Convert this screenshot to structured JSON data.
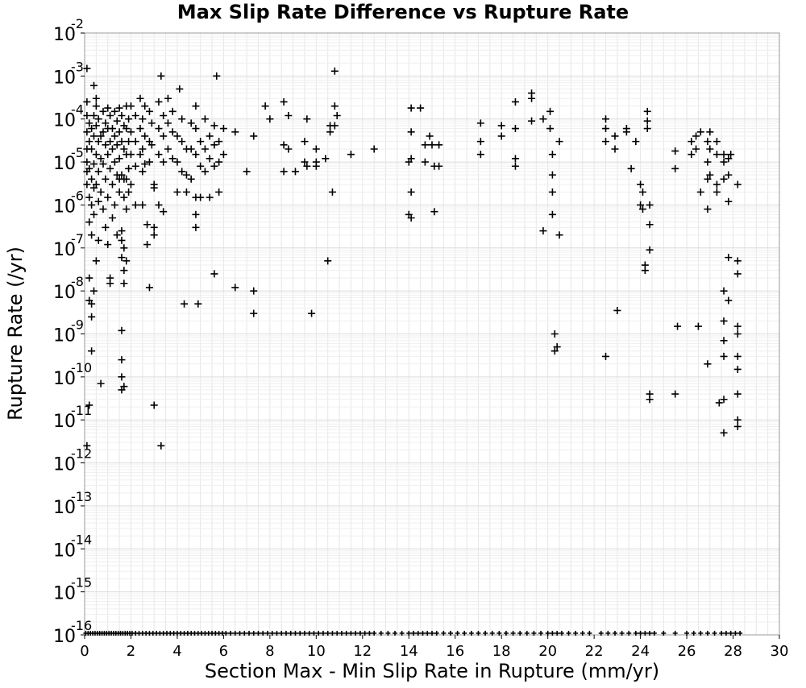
{
  "chart_data": {
    "type": "scatter",
    "title": "Max Slip Rate Difference vs Rupture Rate",
    "xlabel": "Section Max - Min Slip Rate in Rupture (mm/yr)",
    "ylabel": "Rupture Rate (/yr)",
    "xlim": [
      0,
      30
    ],
    "ylim": [
      1e-16,
      0.01
    ],
    "y_scale": "log",
    "grid": true,
    "marker": "plus",
    "marker_color": "#000000",
    "grid_color": "#e6e6e6",
    "x_tick_labels": [
      "0",
      "2",
      "4",
      "6",
      "8",
      "10",
      "12",
      "14",
      "16",
      "18",
      "20",
      "22",
      "24",
      "26",
      "28",
      "30"
    ],
    "y_tick_labels": [
      {
        "base": "10",
        "exp": "-16"
      },
      {
        "base": "10",
        "exp": "-15"
      },
      {
        "base": "10",
        "exp": "-14"
      },
      {
        "base": "10",
        "exp": "-13"
      },
      {
        "base": "10",
        "exp": "-12"
      },
      {
        "base": "10",
        "exp": "-11"
      },
      {
        "base": "10",
        "exp": "-10"
      },
      {
        "base": "10",
        "exp": "-9"
      },
      {
        "base": "10",
        "exp": "-8"
      },
      {
        "base": "10",
        "exp": "-7"
      },
      {
        "base": "10",
        "exp": "-6"
      },
      {
        "base": "10",
        "exp": "-5"
      },
      {
        "base": "10",
        "exp": "-4"
      },
      {
        "base": "10",
        "exp": "-3"
      },
      {
        "base": "10",
        "exp": "-2"
      }
    ],
    "points": [
      [
        0.1,
        2e-05
      ],
      [
        0.1,
        5e-05
      ],
      [
        0.1,
        1e-05
      ],
      [
        0.1,
        3e-06
      ],
      [
        0.1,
        6e-06
      ],
      [
        0.1,
        0.00012
      ],
      [
        0.1,
        0.00025
      ],
      [
        0.1,
        0.0015
      ],
      [
        0.2,
        8e-05
      ],
      [
        0.2,
        3e-05
      ],
      [
        0.2,
        7e-06
      ],
      [
        0.2,
        1.5e-06
      ],
      [
        0.2,
        4e-07
      ],
      [
        0.2,
        2e-08
      ],
      [
        0.2,
        6e-09
      ],
      [
        0.2,
        2.2e-11
      ],
      [
        0.1,
        2.5e-12
      ],
      [
        0.3,
        6e-05
      ],
      [
        0.3,
        2e-05
      ],
      [
        0.3,
        4e-06
      ],
      [
        0.3,
        1e-06
      ],
      [
        0.3,
        2e-07
      ],
      [
        0.3,
        5e-09
      ],
      [
        0.3,
        2.5e-09
      ],
      [
        0.3,
        4e-10
      ],
      [
        0.4,
        0.00012
      ],
      [
        0.4,
        4e-05
      ],
      [
        0.4,
        9e-06
      ],
      [
        0.4,
        2.5e-06
      ],
      [
        0.4,
        6e-07
      ],
      [
        0.4,
        1e-08
      ],
      [
        0.4,
        0.0006
      ],
      [
        0.5,
        0.0002
      ],
      [
        0.5,
        7e-05
      ],
      [
        0.5,
        1.5e-05
      ],
      [
        0.5,
        3e-06
      ],
      [
        0.5,
        5e-08
      ],
      [
        0.5,
        0.0003
      ],
      [
        0.6,
        0.0001
      ],
      [
        0.6,
        3e-05
      ],
      [
        0.6,
        6e-06
      ],
      [
        0.6,
        1.2e-06
      ],
      [
        0.6,
        1.5e-07
      ],
      [
        0.7,
        4e-05
      ],
      [
        0.7,
        1.2e-05
      ],
      [
        0.7,
        2e-06
      ],
      [
        0.7,
        7e-11
      ],
      [
        0.8,
        0.00015
      ],
      [
        0.8,
        5e-05
      ],
      [
        0.8,
        9e-06
      ],
      [
        0.8,
        8e-07
      ],
      [
        0.9,
        8e-05
      ],
      [
        0.9,
        2.5e-05
      ],
      [
        0.9,
        4e-06
      ],
      [
        0.9,
        3e-07
      ],
      [
        1.0,
        0.00018
      ],
      [
        1.0,
        6e-05
      ],
      [
        1.0,
        1.5e-05
      ],
      [
        1.0,
        1.5e-06
      ],
      [
        1.0,
        1.2e-07
      ],
      [
        1.1,
        0.00012
      ],
      [
        1.1,
        3e-05
      ],
      [
        1.1,
        7e-06
      ],
      [
        1.1,
        2e-08
      ],
      [
        1.1,
        1.5e-08
      ],
      [
        1.2,
        6e-05
      ],
      [
        1.2,
        2e-05
      ],
      [
        1.2,
        3e-06
      ],
      [
        1.2,
        5e-07
      ],
      [
        1.3,
        0.00015
      ],
      [
        1.3,
        4e-05
      ],
      [
        1.3,
        1e-05
      ],
      [
        1.3,
        1e-06
      ],
      [
        1.4,
        9e-05
      ],
      [
        1.4,
        2.5e-05
      ],
      [
        1.4,
        5e-06
      ],
      [
        1.4,
        2e-07
      ],
      [
        1.5,
        0.00018
      ],
      [
        1.5,
        5e-05
      ],
      [
        1.5,
        1.2e-05
      ],
      [
        1.5,
        4e-06
      ],
      [
        1.5,
        2e-06
      ],
      [
        1.6,
        0.00012
      ],
      [
        1.6,
        3e-05
      ],
      [
        1.6,
        5e-06
      ],
      [
        1.6,
        2.5e-07
      ],
      [
        1.6,
        1.5e-07
      ],
      [
        1.6,
        6e-08
      ],
      [
        1.6,
        1.2e-09
      ],
      [
        1.6,
        2.5e-10
      ],
      [
        1.6,
        1e-10
      ],
      [
        1.6,
        5e-11
      ],
      [
        1.7,
        6e-11
      ],
      [
        1.7,
        7e-05
      ],
      [
        1.7,
        2e-05
      ],
      [
        1.7,
        4e-06
      ],
      [
        1.7,
        1.5e-06
      ],
      [
        1.7,
        1e-07
      ],
      [
        1.7,
        1.5e-08
      ],
      [
        1.7,
        3e-08
      ],
      [
        1.8,
        0.0002
      ],
      [
        1.8,
        6e-05
      ],
      [
        1.8,
        1.5e-05
      ],
      [
        1.8,
        4e-06
      ],
      [
        1.8,
        8e-07
      ],
      [
        1.8,
        5e-08
      ],
      [
        1.9,
        0.0001
      ],
      [
        1.9,
        3e-05
      ],
      [
        1.9,
        7e-06
      ],
      [
        1.9,
        2e-06
      ],
      [
        2.0,
        0.0002
      ],
      [
        2.0,
        5e-05
      ],
      [
        2.0,
        1.5e-05
      ],
      [
        2.0,
        3e-06
      ],
      [
        2.2,
        0.00012
      ],
      [
        2.2,
        3e-05
      ],
      [
        2.2,
        8e-06
      ],
      [
        2.2,
        1e-06
      ],
      [
        2.4,
        0.0003
      ],
      [
        2.4,
        6e-05
      ],
      [
        2.4,
        1.5e-05
      ],
      [
        2.5,
        0.0001
      ],
      [
        2.5,
        2e-05
      ],
      [
        2.5,
        6e-06
      ],
      [
        2.5,
        1e-06
      ],
      [
        2.6,
        0.0002
      ],
      [
        2.6,
        4e-05
      ],
      [
        2.6,
        9e-06
      ],
      [
        2.8,
        0.00015
      ],
      [
        2.8,
        3e-05
      ],
      [
        2.8,
        1e-05
      ],
      [
        2.7,
        3.5e-07
      ],
      [
        2.7,
        1.2e-07
      ],
      [
        2.8,
        1.2e-08
      ],
      [
        2.9,
        8e-05
      ],
      [
        2.9,
        2.5e-05
      ],
      [
        3.0,
        3e-06
      ],
      [
        3.0,
        2.5e-06
      ],
      [
        3.0,
        3e-07
      ],
      [
        3.0,
        2e-07
      ],
      [
        3.0,
        2.2e-11
      ],
      [
        3.2,
        0.00025
      ],
      [
        3.2,
        6e-05
      ],
      [
        3.2,
        1.5e-05
      ],
      [
        3.2,
        1e-06
      ],
      [
        3.3,
        2.5e-12
      ],
      [
        3.3,
        0.001
      ],
      [
        3.4,
        0.00012
      ],
      [
        3.4,
        4e-05
      ],
      [
        3.4,
        1e-05
      ],
      [
        3.4,
        7e-07
      ],
      [
        3.6,
        0.0003
      ],
      [
        3.6,
        8e-05
      ],
      [
        3.6,
        2e-05
      ],
      [
        3.8,
        0.00015
      ],
      [
        3.8,
        5e-05
      ],
      [
        3.8,
        1.2e-05
      ],
      [
        4.0,
        4e-05
      ],
      [
        4.0,
        1e-05
      ],
      [
        4.0,
        2e-06
      ],
      [
        4.1,
        0.0005
      ],
      [
        4.2,
        0.0001
      ],
      [
        4.2,
        3e-05
      ],
      [
        4.2,
        6e-06
      ],
      [
        4.4,
        2e-05
      ],
      [
        4.4,
        5e-06
      ],
      [
        4.4,
        2e-06
      ],
      [
        4.3,
        5e-09
      ],
      [
        4.6,
        8e-05
      ],
      [
        4.6,
        2e-05
      ],
      [
        4.6,
        4e-06
      ],
      [
        4.8,
        0.0002
      ],
      [
        4.8,
        6e-05
      ],
      [
        4.8,
        1.5e-05
      ],
      [
        4.8,
        1.5e-06
      ],
      [
        4.8,
        6e-07
      ],
      [
        4.8,
        3e-07
      ],
      [
        4.9,
        5e-09
      ],
      [
        5.0,
        3e-05
      ],
      [
        5.0,
        8e-06
      ],
      [
        5.0,
        1.5e-06
      ],
      [
        5.2,
        0.0001
      ],
      [
        5.2,
        2e-05
      ],
      [
        5.2,
        6e-06
      ],
      [
        5.4,
        4e-05
      ],
      [
        5.4,
        1.2e-05
      ],
      [
        5.4,
        1.5e-06
      ],
      [
        5.6,
        7e-05
      ],
      [
        5.6,
        2.5e-05
      ],
      [
        5.6,
        8e-06
      ],
      [
        5.7,
        0.001
      ],
      [
        5.6,
        2.5e-08
      ],
      [
        5.8,
        3e-05
      ],
      [
        5.8,
        1e-05
      ],
      [
        5.8,
        2e-06
      ],
      [
        6.0,
        6e-05
      ],
      [
        6.0,
        1.5e-05
      ],
      [
        6.5,
        5e-05
      ],
      [
        6.5,
        1.2e-08
      ],
      [
        7.0,
        6e-06
      ],
      [
        7.3,
        4e-05
      ],
      [
        7.3,
        3e-09
      ],
      [
        7.3,
        1e-08
      ],
      [
        7.8,
        0.0002
      ],
      [
        8.0,
        0.0001
      ],
      [
        8.6,
        0.00025
      ],
      [
        8.6,
        2.5e-05
      ],
      [
        8.6,
        6e-06
      ],
      [
        8.8,
        0.00012
      ],
      [
        8.8,
        2e-05
      ],
      [
        9.1,
        6e-06
      ],
      [
        9.5,
        3e-05
      ],
      [
        9.5,
        1e-05
      ],
      [
        9.6,
        0.0001
      ],
      [
        9.6,
        8e-06
      ],
      [
        9.8,
        3e-09
      ],
      [
        10.0,
        2e-05
      ],
      [
        10.0,
        1e-05
      ],
      [
        10.0,
        8e-06
      ],
      [
        10.4,
        1.2e-05
      ],
      [
        10.5,
        5e-08
      ],
      [
        10.6,
        7e-05
      ],
      [
        10.6,
        5e-05
      ],
      [
        10.7,
        2e-06
      ],
      [
        10.8,
        0.0013
      ],
      [
        10.8,
        0.0002
      ],
      [
        10.8,
        7e-05
      ],
      [
        10.9,
        0.00012
      ],
      [
        11.5,
        1.5e-05
      ],
      [
        12.5,
        2e-05
      ],
      [
        14.0,
        1e-05
      ],
      [
        14.0,
        6e-07
      ],
      [
        14.1,
        0.00018
      ],
      [
        14.1,
        5e-05
      ],
      [
        14.1,
        2e-06
      ],
      [
        14.1,
        5e-07
      ],
      [
        14.1,
        1.2e-05
      ],
      [
        14.5,
        0.00018
      ],
      [
        14.7,
        2.5e-05
      ],
      [
        14.7,
        1e-05
      ],
      [
        14.9,
        4e-05
      ],
      [
        15.0,
        2.5e-05
      ],
      [
        15.1,
        8e-06
      ],
      [
        15.1,
        7e-07
      ],
      [
        15.3,
        8e-06
      ],
      [
        15.3,
        2.5e-05
      ],
      [
        17.1,
        8e-05
      ],
      [
        17.1,
        3e-05
      ],
      [
        17.1,
        1.5e-05
      ],
      [
        18.0,
        4e-05
      ],
      [
        18.0,
        7e-05
      ],
      [
        18.6,
        0.00025
      ],
      [
        18.6,
        6e-05
      ],
      [
        18.6,
        1.2e-05
      ],
      [
        18.6,
        8e-06
      ],
      [
        19.3,
        0.0004
      ],
      [
        19.3,
        9e-05
      ],
      [
        19.3,
        0.0003
      ],
      [
        19.8,
        0.0001
      ],
      [
        19.8,
        2.5e-07
      ],
      [
        20.1,
        0.00015
      ],
      [
        20.1,
        6e-05
      ],
      [
        20.2,
        1.5e-05
      ],
      [
        20.2,
        5e-06
      ],
      [
        20.2,
        2e-06
      ],
      [
        20.2,
        6e-07
      ],
      [
        20.3,
        1e-09
      ],
      [
        20.3,
        4e-10
      ],
      [
        20.4,
        5e-10
      ],
      [
        20.5,
        3e-05
      ],
      [
        20.5,
        2e-07
      ],
      [
        22.5,
        0.0001
      ],
      [
        22.5,
        6e-05
      ],
      [
        22.5,
        3e-05
      ],
      [
        22.5,
        3e-10
      ],
      [
        22.9,
        4e-05
      ],
      [
        22.9,
        2e-05
      ],
      [
        23.0,
        3.5e-09
      ],
      [
        23.4,
        5e-05
      ],
      [
        23.4,
        6e-05
      ],
      [
        23.6,
        7e-06
      ],
      [
        23.8,
        3e-05
      ],
      [
        24.0,
        3e-06
      ],
      [
        24.0,
        1e-06
      ],
      [
        24.1,
        8e-07
      ],
      [
        24.1,
        2e-06
      ],
      [
        24.2,
        3e-08
      ],
      [
        24.2,
        4e-08
      ],
      [
        24.3,
        0.00015
      ],
      [
        24.3,
        9e-05
      ],
      [
        24.3,
        6e-05
      ],
      [
        24.4,
        1e-06
      ],
      [
        24.4,
        3.5e-07
      ],
      [
        24.4,
        9e-08
      ],
      [
        24.4,
        3e-11
      ],
      [
        24.4,
        4e-11
      ],
      [
        25.5,
        1.8e-05
      ],
      [
        25.5,
        7e-06
      ],
      [
        25.5,
        4e-11
      ],
      [
        25.6,
        1.5e-09
      ],
      [
        26.2,
        3e-05
      ],
      [
        26.2,
        1.5e-05
      ],
      [
        26.4,
        4e-05
      ],
      [
        26.4,
        2e-05
      ],
      [
        26.5,
        1.5e-09
      ],
      [
        26.6,
        5e-05
      ],
      [
        26.6,
        2e-06
      ],
      [
        26.9,
        3e-05
      ],
      [
        26.9,
        1e-05
      ],
      [
        26.9,
        4e-06
      ],
      [
        26.9,
        8e-07
      ],
      [
        26.9,
        2e-10
      ],
      [
        27.0,
        5e-05
      ],
      [
        27.0,
        2e-05
      ],
      [
        27.0,
        5e-06
      ],
      [
        27.3,
        3e-05
      ],
      [
        27.3,
        1.5e-05
      ],
      [
        27.3,
        3e-06
      ],
      [
        27.3,
        2e-06
      ],
      [
        27.4,
        2.5e-11
      ],
      [
        27.6,
        1.5e-05
      ],
      [
        27.6,
        1e-05
      ],
      [
        27.6,
        4e-06
      ],
      [
        27.6,
        1e-08
      ],
      [
        27.6,
        2e-09
      ],
      [
        27.6,
        7e-10
      ],
      [
        27.6,
        3e-10
      ],
      [
        27.6,
        3e-11
      ],
      [
        27.6,
        5e-12
      ],
      [
        27.8,
        1.2e-05
      ],
      [
        27.8,
        5e-06
      ],
      [
        27.8,
        1.2e-06
      ],
      [
        27.8,
        6e-08
      ],
      [
        27.8,
        6e-09
      ],
      [
        27.9,
        1.5e-05
      ],
      [
        28.2,
        3e-06
      ],
      [
        28.2,
        5e-08
      ],
      [
        28.2,
        2.5e-08
      ],
      [
        28.2,
        1.5e-09
      ],
      [
        28.2,
        1e-09
      ],
      [
        28.2,
        3e-10
      ],
      [
        28.2,
        1.5e-10
      ],
      [
        28.2,
        4e-11
      ],
      [
        28.2,
        1e-11
      ],
      [
        28.2,
        7e-12
      ]
    ],
    "zero_rate_x": [
      0.05,
      0.15,
      0.25,
      0.35,
      0.45,
      0.55,
      0.65,
      0.75,
      0.85,
      0.95,
      1.05,
      1.15,
      1.25,
      1.35,
      1.45,
      1.55,
      1.65,
      1.75,
      1.85,
      1.95,
      2.05,
      2.2,
      2.35,
      2.5,
      2.65,
      2.8,
      2.95,
      3.1,
      3.25,
      3.4,
      3.55,
      3.7,
      3.85,
      4.0,
      4.15,
      4.3,
      4.45,
      4.6,
      4.75,
      4.9,
      5.05,
      5.2,
      5.35,
      5.5,
      5.65,
      5.8,
      5.95,
      6.1,
      6.3,
      6.5,
      6.7,
      6.9,
      7.1,
      7.3,
      7.5,
      7.7,
      7.9,
      8.1,
      8.3,
      8.5,
      8.7,
      8.9,
      9.1,
      9.3,
      9.5,
      9.7,
      9.9,
      10.1,
      10.3,
      10.5,
      10.7,
      10.9,
      11.1,
      11.3,
      11.5,
      11.7,
      11.9,
      12.1,
      12.3,
      12.5,
      12.8,
      13.1,
      13.4,
      13.7,
      14.0,
      14.2,
      14.4,
      14.6,
      14.8,
      15.0,
      15.2,
      15.5,
      15.8,
      16.1,
      16.4,
      16.7,
      17.0,
      17.3,
      17.6,
      17.9,
      18.2,
      18.5,
      18.8,
      19.1,
      19.4,
      19.7,
      20.0,
      20.2,
      20.4,
      20.6,
      20.9,
      21.2,
      21.5,
      21.8,
      22.3,
      22.6,
      22.9,
      23.2,
      23.5,
      23.8,
      24.0,
      24.2,
      24.4,
      24.6,
      25.0,
      25.5,
      26.0,
      26.3,
      26.6,
      26.9,
      27.2,
      27.5,
      27.7,
      27.9,
      28.1,
      28.3
    ]
  }
}
